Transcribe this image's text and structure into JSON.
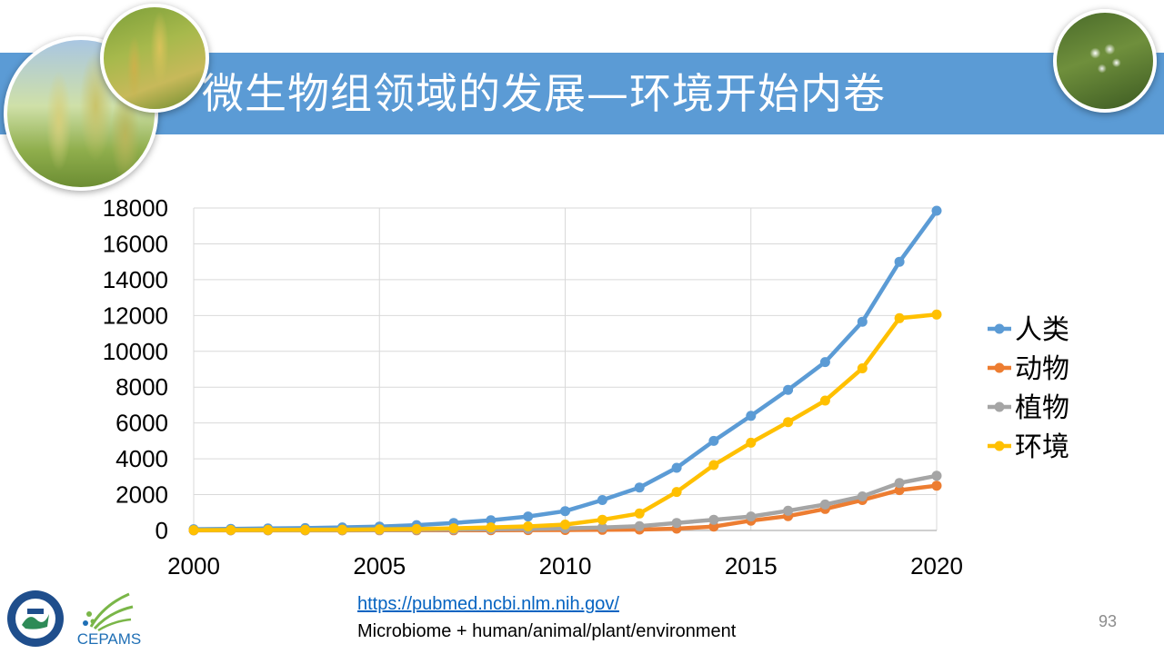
{
  "slide": {
    "title": "微生物组领域的发展—环境开始内卷",
    "page_number": "93",
    "source_link": "https://pubmed.ncbi.nlm.nih.gov/",
    "source_note": "Microbiome + human/animal/plant/environment",
    "logo_text": "CEPAMS",
    "accent_color": "#5b9bd5"
  },
  "chart_data": {
    "type": "line",
    "title": "",
    "xlabel": "",
    "ylabel": "",
    "x": [
      2000,
      2001,
      2002,
      2003,
      2004,
      2005,
      2006,
      2007,
      2008,
      2009,
      2010,
      2011,
      2012,
      2013,
      2014,
      2015,
      2016,
      2017,
      2018,
      2019,
      2020
    ],
    "xlim": [
      2000,
      2020
    ],
    "ylim": [
      0,
      18000
    ],
    "x_ticks": [
      2000,
      2005,
      2010,
      2015,
      2020
    ],
    "y_ticks": [
      0,
      2000,
      4000,
      6000,
      8000,
      10000,
      12000,
      14000,
      16000,
      18000
    ],
    "grid": true,
    "legend_position": "right",
    "series": [
      {
        "name": "人类",
        "color": "#5b9bd5",
        "values": [
          70,
          90,
          110,
          130,
          170,
          220,
          300,
          420,
          570,
          780,
          1080,
          1700,
          2400,
          3500,
          5000,
          6400,
          7850,
          9400,
          11650,
          15000,
          17850
        ]
      },
      {
        "name": "动物",
        "color": "#ed7d31",
        "values": [
          5,
          5,
          5,
          5,
          5,
          10,
          10,
          10,
          15,
          20,
          25,
          35,
          50,
          100,
          220,
          550,
          800,
          1200,
          1700,
          2250,
          2500
        ]
      },
      {
        "name": "植物",
        "color": "#a5a5a5",
        "values": [
          10,
          10,
          15,
          15,
          20,
          25,
          35,
          50,
          70,
          90,
          120,
          160,
          240,
          420,
          600,
          780,
          1100,
          1450,
          1900,
          2650,
          3050
        ]
      },
      {
        "name": "环境",
        "color": "#ffc000",
        "values": [
          20,
          25,
          30,
          35,
          45,
          60,
          80,
          120,
          170,
          230,
          330,
          600,
          950,
          2150,
          3650,
          4900,
          6050,
          7250,
          9050,
          11850,
          12050
        ]
      }
    ]
  }
}
